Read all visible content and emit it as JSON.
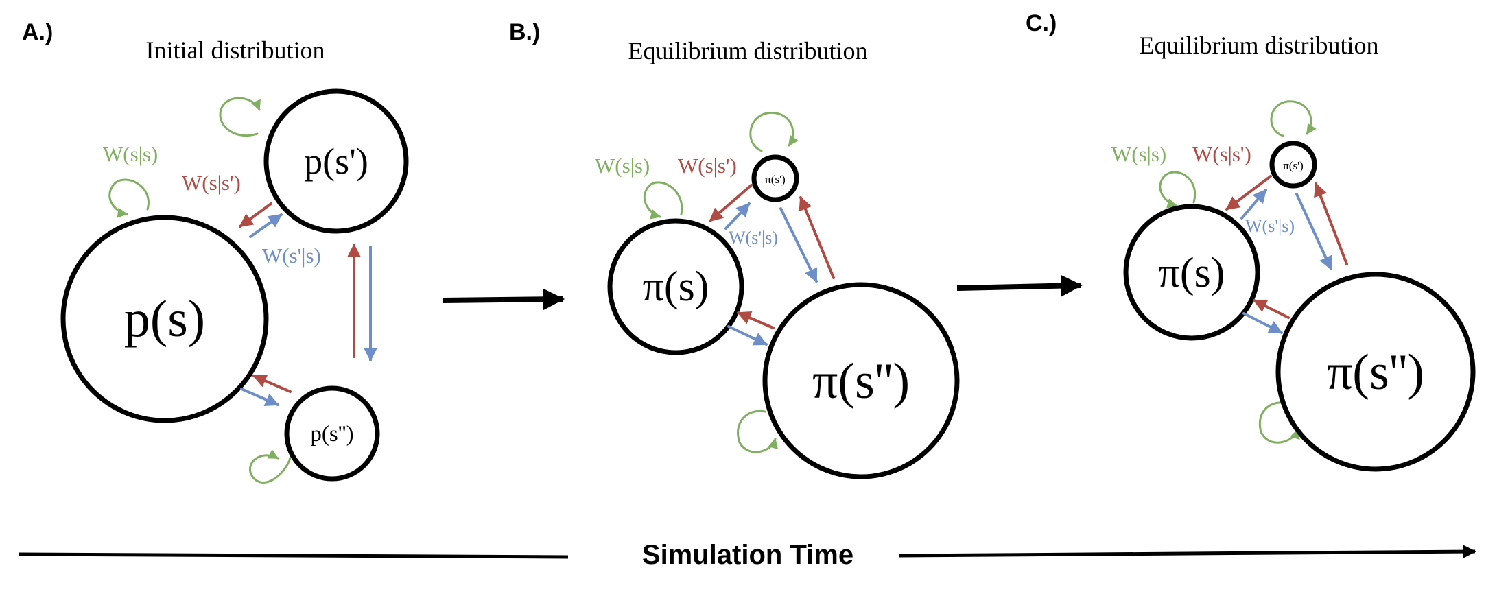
{
  "colors": {
    "green": "#7fb060",
    "red": "#b24a44",
    "blue": "#6d8ec8",
    "black": "#000000"
  },
  "panels": {
    "a": {
      "letter": "A.)",
      "title": "Initial distribution",
      "node_s": "p(s)",
      "node_s1": "p(s')",
      "node_s2": "p(s'')",
      "w_self": "W(s|s)",
      "w_from_s1": "W(s|s')",
      "w_to_s1": "W(s'|s)"
    },
    "b": {
      "letter": "B.)",
      "title": "Equilibrium distribution",
      "node_s": "π(s)",
      "node_s1": "π(s')",
      "node_s2": "π(s'')",
      "w_self": "W(s|s)",
      "w_from_s1": "W(s|s')",
      "w_to_s1": "W(s'|s)"
    },
    "c": {
      "letter": "C.)",
      "title": "Equilibrium distribution",
      "node_s": "π(s)",
      "node_s1": "π(s')",
      "node_s2": "π(s'')",
      "w_self": "W(s|s)",
      "w_from_s1": "W(s|s')",
      "w_to_s1": "W(s'|s)"
    }
  },
  "timeline": {
    "label": "Simulation Time"
  }
}
